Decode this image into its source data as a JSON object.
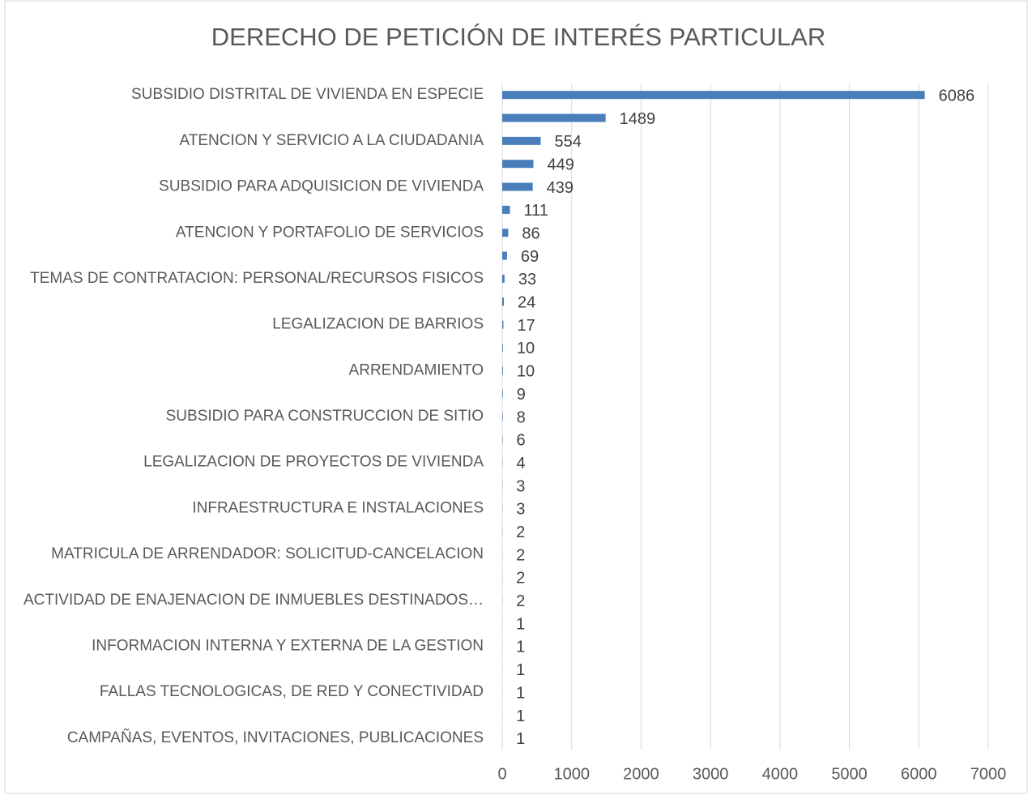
{
  "chart_data": {
    "type": "bar",
    "orientation": "horizontal",
    "title": "DERECHO DE PETICIÓN DE INTERÉS PARTICULAR",
    "categories": [
      "SUBSIDIO DISTRITAL DE VIVIENDA EN ESPECIE",
      null,
      "ATENCION Y SERVICIO A LA CIUDADANIA",
      null,
      "SUBSIDIO PARA ADQUISICION DE VIVIENDA",
      null,
      "ATENCION Y PORTAFOLIO DE SERVICIOS",
      null,
      "TEMAS DE CONTRATACION: PERSONAL/RECURSOS FISICOS",
      null,
      "LEGALIZACION DE BARRIOS",
      null,
      "ARRENDAMIENTO",
      null,
      "SUBSIDIO PARA CONSTRUCCION DE SITIO",
      null,
      "LEGALIZACION DE PROYECTOS DE VIVIENDA",
      null,
      "INFRAESTRUCTURA E INSTALACIONES",
      null,
      "MATRICULA DE ARRENDADOR: SOLICITUD-CANCELACION",
      null,
      "ACTIVIDAD DE ENAJENACION DE INMUEBLES DESTINADOS…",
      null,
      "INFORMACION INTERNA Y EXTERNA DE LA GESTION",
      null,
      "FALLAS TECNOLOGICAS, DE RED Y CONECTIVIDAD",
      null,
      "CAMPAÑAS, EVENTOS, INVITACIONES, PUBLICACIONES"
    ],
    "values": [
      6086,
      1489,
      554,
      449,
      439,
      111,
      86,
      69,
      33,
      24,
      17,
      10,
      10,
      9,
      8,
      6,
      4,
      3,
      3,
      2,
      2,
      2,
      2,
      1,
      1,
      1,
      1,
      1,
      1
    ],
    "color": "#4a7ebb",
    "xlim": [
      0,
      7000
    ],
    "xticks": [
      0,
      1000,
      2000,
      3000,
      4000,
      5000,
      6000,
      7000
    ],
    "grid": true
  }
}
